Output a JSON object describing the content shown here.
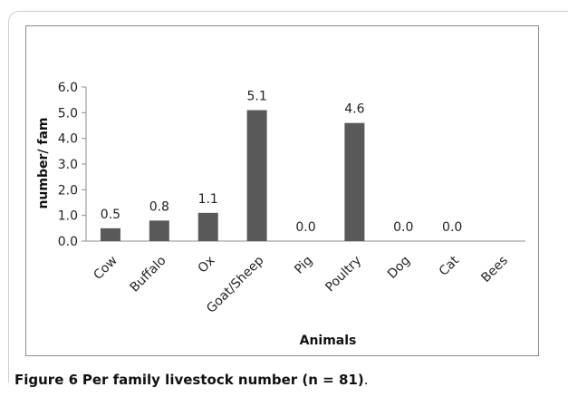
{
  "caption": {
    "figure_label": "Figure 6",
    "title": "Per family livestock number (n = 81)",
    "trailing": "."
  },
  "chart_data": {
    "type": "bar",
    "title": "",
    "xlabel": "Animals",
    "ylabel": "number/ fam",
    "categories": [
      "Cow",
      "Buffalo",
      "Ox",
      "Goat/Sheep",
      "Pig",
      "Poultry",
      "Dog",
      "Cat",
      "Bees"
    ],
    "values": [
      0.5,
      0.8,
      1.1,
      5.1,
      0.0,
      4.6,
      0.0,
      0.0,
      null
    ],
    "data_labels": [
      "0.5",
      "0.8",
      "1.1",
      "5.1",
      "0.0",
      "4.6",
      "0.0",
      "0.0",
      ""
    ],
    "ylim": [
      0,
      6
    ],
    "yticks": [
      "0.0",
      "1.0",
      "2.0",
      "3.0",
      "4.0",
      "5.0",
      "6.0"
    ],
    "grid": false,
    "legend": "none",
    "bar_color": "#595959"
  }
}
